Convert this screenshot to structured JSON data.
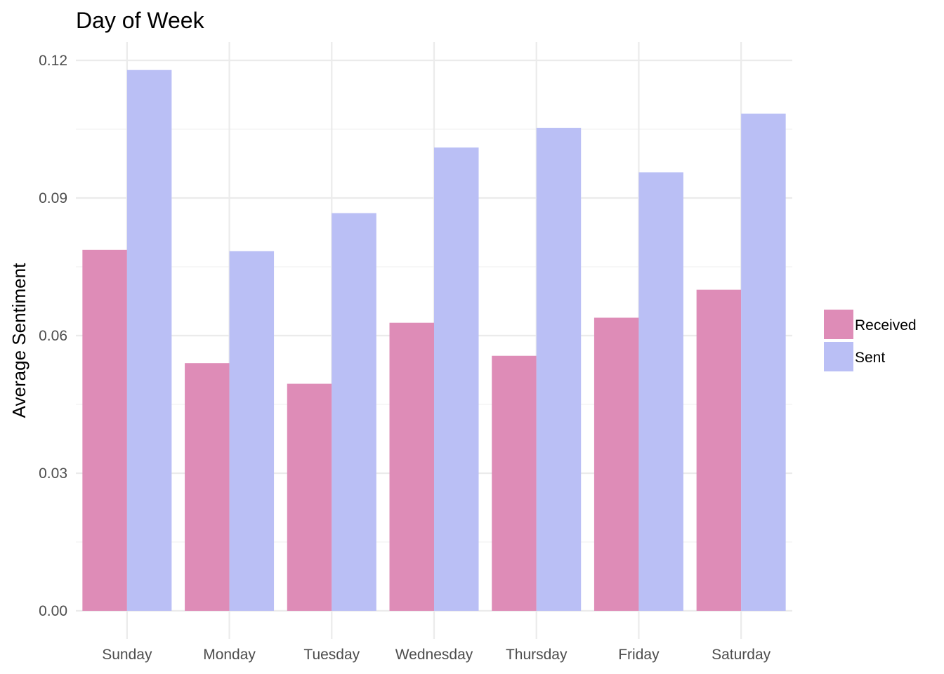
{
  "chart_data": {
    "type": "bar",
    "title": "Day of Week",
    "xlabel": "",
    "ylabel": "Average Sentiment",
    "categories": [
      "Sunday",
      "Monday",
      "Tuesday",
      "Wednesday",
      "Thursday",
      "Friday",
      "Saturday"
    ],
    "series": [
      {
        "name": "Received",
        "color": "#de8cb7",
        "values": [
          0.0787,
          0.054,
          0.0495,
          0.0628,
          0.0556,
          0.0639,
          0.07
        ]
      },
      {
        "name": "Sent",
        "color": "#babff5",
        "values": [
          0.1179,
          0.0784,
          0.0867,
          0.101,
          0.1053,
          0.0956,
          0.1084
        ]
      }
    ],
    "ylim": [
      0,
      0.12
    ],
    "yticks": [
      0.0,
      0.03,
      0.06,
      0.09,
      0.12
    ],
    "ytick_labels": [
      "0.00",
      "0.03",
      "0.06",
      "0.09",
      "0.12"
    ],
    "grid": true,
    "legend_position": "right",
    "bar_mode": "dodge"
  }
}
